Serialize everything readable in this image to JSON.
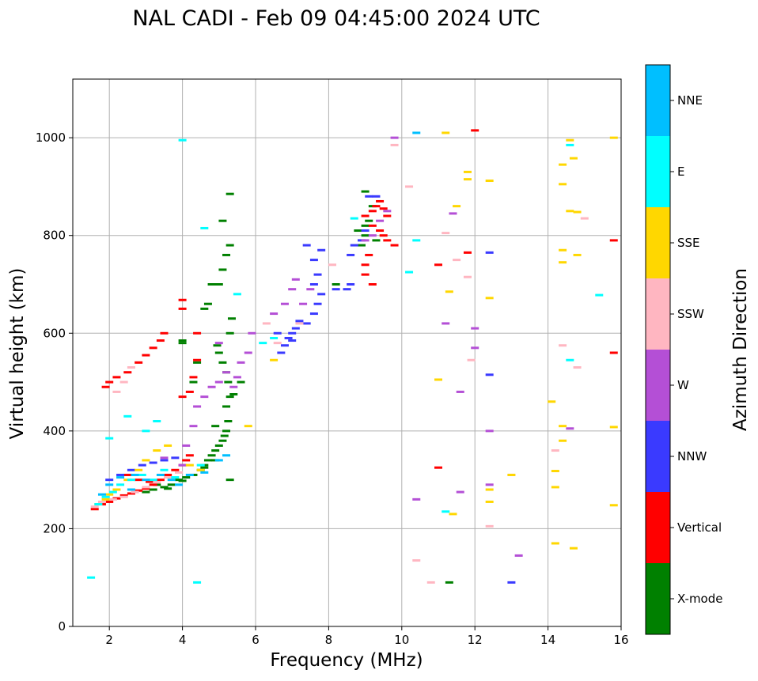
{
  "chart_data": {
    "type": "scatter",
    "title": "NAL CADI - Feb 09 04:45:00 2024 UTC",
    "xlabel": "Frequency (MHz)",
    "ylabel": "Virtual height (km)",
    "xlim": [
      1,
      16
    ],
    "ylim": [
      0,
      1120
    ],
    "xticks": [
      2,
      4,
      6,
      8,
      10,
      12,
      14,
      16
    ],
    "yticks": [
      0,
      200,
      400,
      600,
      800,
      1000
    ],
    "grid": true,
    "colorbar": {
      "label": "Azimuth Direction",
      "categories": [
        "X-mode",
        "Vertical",
        "NNW",
        "W",
        "SSW",
        "SSE",
        "E",
        "NNE"
      ],
      "colors": [
        "#008000",
        "#ff0000",
        "#3a3aff",
        "#b44fd6",
        "#ffb6c1",
        "#ffd700",
        "#00ffff",
        "#00bfff"
      ]
    },
    "series": [
      {
        "name": "X-mode",
        "points": [
          [
            3.5,
            285
          ],
          [
            3.6,
            282
          ],
          [
            3.7,
            290
          ],
          [
            3.9,
            300
          ],
          [
            4.0,
            298
          ],
          [
            4.1,
            305
          ],
          [
            4.3,
            310
          ],
          [
            4.5,
            320
          ],
          [
            4.6,
            330
          ],
          [
            4.7,
            340
          ],
          [
            4.8,
            350
          ],
          [
            4.9,
            360
          ],
          [
            5.0,
            370
          ],
          [
            5.1,
            380
          ],
          [
            5.15,
            390
          ],
          [
            5.2,
            400
          ],
          [
            5.25,
            420
          ],
          [
            5.2,
            450
          ],
          [
            5.3,
            470
          ],
          [
            5.25,
            500
          ],
          [
            5.2,
            520
          ],
          [
            5.1,
            540
          ],
          [
            5.0,
            560
          ],
          [
            4.95,
            575
          ],
          [
            4.0,
            580
          ],
          [
            4.0,
            585
          ],
          [
            3.3,
            290
          ],
          [
            3.2,
            280
          ],
          [
            3.0,
            275
          ],
          [
            4.6,
            325
          ],
          [
            4.9,
            340
          ],
          [
            5.4,
            475
          ],
          [
            5.3,
            600
          ],
          [
            5.35,
            630
          ],
          [
            4.7,
            660
          ],
          [
            4.6,
            650
          ],
          [
            4.8,
            700
          ],
          [
            5.0,
            700
          ],
          [
            5.1,
            730
          ],
          [
            5.2,
            760
          ],
          [
            5.3,
            780
          ],
          [
            5.1,
            830
          ],
          [
            5.3,
            885
          ],
          [
            4.4,
            540
          ],
          [
            4.3,
            500
          ],
          [
            9.0,
            800
          ],
          [
            9.0,
            820
          ],
          [
            9.1,
            830
          ],
          [
            9.2,
            860
          ],
          [
            9.0,
            890
          ],
          [
            8.8,
            810
          ],
          [
            9.3,
            790
          ],
          [
            8.9,
            780
          ],
          [
            8.2,
            700
          ],
          [
            11.3,
            90
          ],
          [
            5.6,
            500
          ],
          [
            5.3,
            300
          ],
          [
            4.9,
            410
          ]
        ]
      },
      {
        "name": "Vertical",
        "points": [
          [
            1.6,
            240
          ],
          [
            1.8,
            250
          ],
          [
            2.0,
            255
          ],
          [
            2.2,
            262
          ],
          [
            2.4,
            268
          ],
          [
            2.6,
            272
          ],
          [
            2.8,
            278
          ],
          [
            3.0,
            282
          ],
          [
            3.2,
            290
          ],
          [
            3.4,
            300
          ],
          [
            3.6,
            310
          ],
          [
            3.8,
            320
          ],
          [
            4.0,
            330
          ],
          [
            4.1,
            340
          ],
          [
            4.2,
            350
          ],
          [
            1.9,
            490
          ],
          [
            2.0,
            500
          ],
          [
            2.2,
            510
          ],
          [
            2.5,
            520
          ],
          [
            2.8,
            540
          ],
          [
            3.0,
            555
          ],
          [
            3.2,
            570
          ],
          [
            3.4,
            585
          ],
          [
            3.5,
            600
          ],
          [
            4.0,
            650
          ],
          [
            4.0,
            668
          ],
          [
            4.4,
            600
          ],
          [
            4.4,
            545
          ],
          [
            4.3,
            510
          ],
          [
            4.2,
            480
          ],
          [
            4.0,
            470
          ],
          [
            9.0,
            840
          ],
          [
            9.2,
            850
          ],
          [
            9.3,
            860
          ],
          [
            9.4,
            870
          ],
          [
            9.5,
            855
          ],
          [
            9.6,
            840
          ],
          [
            9.2,
            820
          ],
          [
            9.4,
            810
          ],
          [
            9.5,
            800
          ],
          [
            9.6,
            790
          ],
          [
            9.8,
            780
          ],
          [
            9.1,
            760
          ],
          [
            9.0,
            740
          ],
          [
            9.0,
            720
          ],
          [
            9.2,
            700
          ],
          [
            11.0,
            740
          ],
          [
            12.0,
            1015
          ],
          [
            11.8,
            765
          ],
          [
            15.8,
            560
          ],
          [
            15.8,
            790
          ],
          [
            11.0,
            325
          ],
          [
            2.5,
            310
          ],
          [
            2.8,
            300
          ],
          [
            3.1,
            296
          ]
        ]
      },
      {
        "name": "NNW",
        "points": [
          [
            2.0,
            300
          ],
          [
            2.3,
            310
          ],
          [
            2.6,
            320
          ],
          [
            2.9,
            330
          ],
          [
            3.2,
            335
          ],
          [
            3.5,
            340
          ],
          [
            3.8,
            345
          ],
          [
            6.7,
            560
          ],
          [
            6.8,
            575
          ],
          [
            6.9,
            590
          ],
          [
            7.0,
            600
          ],
          [
            7.1,
            610
          ],
          [
            7.2,
            625
          ],
          [
            7.4,
            620
          ],
          [
            7.6,
            640
          ],
          [
            7.7,
            660
          ],
          [
            7.8,
            680
          ],
          [
            7.6,
            700
          ],
          [
            7.7,
            720
          ],
          [
            7.6,
            750
          ],
          [
            7.4,
            780
          ],
          [
            7.8,
            770
          ],
          [
            8.2,
            690
          ],
          [
            8.5,
            690
          ],
          [
            8.6,
            760
          ],
          [
            8.7,
            780
          ],
          [
            8.9,
            790
          ],
          [
            9.0,
            810
          ],
          [
            9.1,
            880
          ],
          [
            12.4,
            765
          ],
          [
            12.4,
            515
          ],
          [
            13.0,
            90
          ],
          [
            9.3,
            880
          ],
          [
            8.6,
            700
          ],
          [
            7.0,
            585
          ],
          [
            6.6,
            600
          ]
        ]
      },
      {
        "name": "W",
        "points": [
          [
            3.5,
            345
          ],
          [
            4.0,
            330
          ],
          [
            4.1,
            370
          ],
          [
            4.3,
            410
          ],
          [
            4.4,
            450
          ],
          [
            4.6,
            470
          ],
          [
            4.8,
            490
          ],
          [
            5.0,
            500
          ],
          [
            5.2,
            520
          ],
          [
            5.4,
            490
          ],
          [
            5.5,
            510
          ],
          [
            5.6,
            540
          ],
          [
            5.8,
            560
          ],
          [
            5.9,
            600
          ],
          [
            6.5,
            640
          ],
          [
            6.8,
            660
          ],
          [
            7.0,
            690
          ],
          [
            7.1,
            710
          ],
          [
            7.3,
            660
          ],
          [
            7.5,
            690
          ],
          [
            9.0,
            790
          ],
          [
            9.2,
            800
          ],
          [
            9.4,
            830
          ],
          [
            9.6,
            850
          ],
          [
            9.8,
            1000
          ],
          [
            11.4,
            845
          ],
          [
            11.2,
            620
          ],
          [
            11.6,
            480
          ],
          [
            12.0,
            610
          ],
          [
            12.0,
            570
          ],
          [
            12.4,
            400
          ],
          [
            12.4,
            290
          ],
          [
            13.2,
            145
          ],
          [
            10.4,
            260
          ],
          [
            11.6,
            275
          ],
          [
            14.6,
            405
          ],
          [
            5.0,
            580
          ]
        ]
      },
      {
        "name": "SSW",
        "points": [
          [
            1.6,
            245
          ],
          [
            1.8,
            255
          ],
          [
            2.1,
            260
          ],
          [
            2.4,
            265
          ],
          [
            2.7,
            275
          ],
          [
            3.0,
            285
          ],
          [
            3.3,
            295
          ],
          [
            3.6,
            305
          ],
          [
            3.9,
            315
          ],
          [
            2.2,
            480
          ],
          [
            2.4,
            500
          ],
          [
            2.6,
            530
          ],
          [
            6.3,
            620
          ],
          [
            6.6,
            580
          ],
          [
            7.2,
            620
          ],
          [
            8.1,
            740
          ],
          [
            9.8,
            985
          ],
          [
            10.2,
            900
          ],
          [
            10.4,
            135
          ],
          [
            10.8,
            90
          ],
          [
            11.2,
            805
          ],
          [
            11.8,
            715
          ],
          [
            11.9,
            545
          ],
          [
            12.4,
            205
          ],
          [
            14.2,
            360
          ],
          [
            14.4,
            575
          ],
          [
            14.8,
            530
          ],
          [
            15.0,
            835
          ],
          [
            13.0,
            310
          ],
          [
            11.5,
            750
          ]
        ]
      },
      {
        "name": "SSE",
        "points": [
          [
            1.7,
            250
          ],
          [
            1.9,
            260
          ],
          [
            2.0,
            270
          ],
          [
            2.2,
            280
          ],
          [
            2.5,
            300
          ],
          [
            2.8,
            320
          ],
          [
            3.0,
            340
          ],
          [
            3.3,
            360
          ],
          [
            3.6,
            370
          ],
          [
            4.2,
            330
          ],
          [
            4.5,
            320
          ],
          [
            5.8,
            410
          ],
          [
            6.5,
            545
          ],
          [
            11.0,
            505
          ],
          [
            11.2,
            1010
          ],
          [
            11.3,
            685
          ],
          [
            11.4,
            230
          ],
          [
            11.5,
            860
          ],
          [
            11.8,
            930
          ],
          [
            11.8,
            915
          ],
          [
            12.4,
            912
          ],
          [
            12.4,
            672
          ],
          [
            12.4,
            280
          ],
          [
            12.4,
            255
          ],
          [
            13.0,
            310
          ],
          [
            14.1,
            460
          ],
          [
            14.2,
            318
          ],
          [
            14.2,
            285
          ],
          [
            14.2,
            170
          ],
          [
            14.4,
            945
          ],
          [
            14.4,
            905
          ],
          [
            14.4,
            770
          ],
          [
            14.4,
            745
          ],
          [
            14.4,
            410
          ],
          [
            14.4,
            380
          ],
          [
            14.6,
            850
          ],
          [
            14.8,
            848
          ],
          [
            14.8,
            760
          ],
          [
            14.7,
            958
          ],
          [
            14.7,
            160
          ],
          [
            15.8,
            1000
          ],
          [
            15.8,
            408
          ],
          [
            15.8,
            248
          ],
          [
            14.6,
            995
          ]
        ]
      },
      {
        "name": "E",
        "points": [
          [
            1.5,
            100
          ],
          [
            1.7,
            250
          ],
          [
            1.9,
            265
          ],
          [
            2.1,
            275
          ],
          [
            2.3,
            290
          ],
          [
            2.6,
            300
          ],
          [
            2.9,
            310
          ],
          [
            3.2,
            300
          ],
          [
            3.5,
            320
          ],
          [
            2.0,
            385
          ],
          [
            2.5,
            430
          ],
          [
            3.0,
            400
          ],
          [
            3.3,
            420
          ],
          [
            4.0,
            995
          ],
          [
            4.4,
            90
          ],
          [
            4.6,
            815
          ],
          [
            5.5,
            680
          ],
          [
            6.2,
            580
          ],
          [
            6.5,
            590
          ],
          [
            8.7,
            835
          ],
          [
            10.2,
            725
          ],
          [
            10.4,
            790
          ],
          [
            11.2,
            235
          ],
          [
            14.6,
            545
          ],
          [
            14.6,
            985
          ],
          [
            15.4,
            678
          ],
          [
            4.5,
            330
          ],
          [
            3.8,
            305
          ]
        ]
      },
      {
        "name": "NNE",
        "points": [
          [
            1.8,
            270
          ],
          [
            2.0,
            290
          ],
          [
            2.3,
            305
          ],
          [
            2.7,
            310
          ],
          [
            3.0,
            300
          ],
          [
            3.4,
            310
          ],
          [
            3.7,
            300
          ],
          [
            4.2,
            310
          ],
          [
            4.6,
            315
          ],
          [
            5.0,
            340
          ],
          [
            5.2,
            350
          ],
          [
            10.4,
            1010
          ],
          [
            2.6,
            280
          ],
          [
            3.9,
            290
          ]
        ]
      }
    ]
  }
}
